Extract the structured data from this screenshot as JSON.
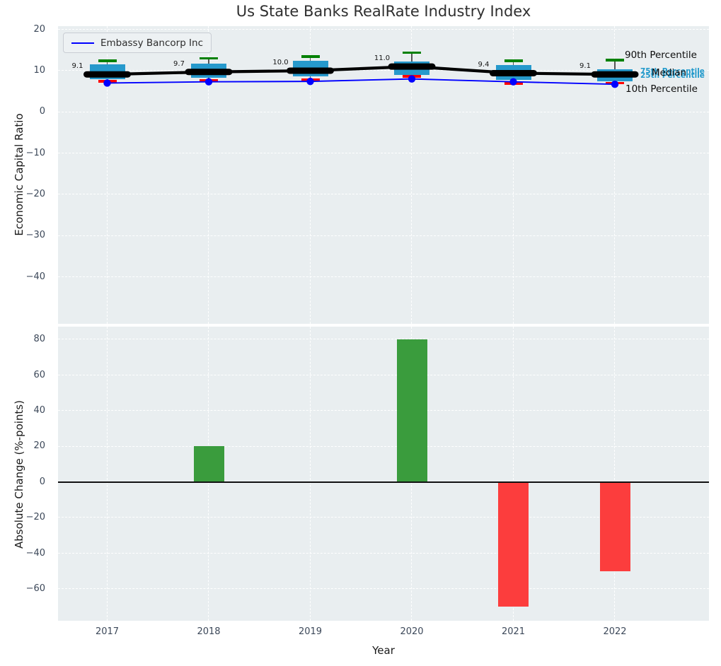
{
  "title": "Us State Banks RealRate Industry Index",
  "legend": {
    "label": "Embassy Bancorp Inc"
  },
  "annotations": {
    "p90": "90th Percentile",
    "median": "Median",
    "p10": "10th Percentile",
    "p75": "75th Percentile",
    "p25": "25th Percentile"
  },
  "colors": {
    "plot_bg": "#e9eef0",
    "grid": "#ffffff",
    "box_fill": "#2699cc",
    "whisker": "#555555",
    "cap_90th": "#008000",
    "cap_10th": "#ff0000",
    "median_line": "#000000",
    "embassy_line": "#0000ff",
    "bar_positive": "#3a9c3d",
    "bar_negative": "#fc3d3d",
    "tick_text": "#3c4859",
    "annotation_cyan": "#2199cb",
    "annotation_black": "#0d0d0d"
  },
  "chart_data": [
    {
      "type": "box",
      "title": "Us State Banks RealRate Industry Index",
      "ylabel": "Economic Capital Ratio",
      "categories": [
        "2017",
        "2018",
        "2019",
        "2020",
        "2021",
        "2022"
      ],
      "yticks": [
        20,
        10,
        0,
        -10,
        -20,
        -30,
        -40
      ],
      "ylim": [
        -51,
        21
      ],
      "grid": true,
      "legend_position": "upper left",
      "boxes": [
        {
          "year": "2017",
          "p10": 7.4,
          "p25": 8.0,
          "median": 9.1,
          "p75": 11.5,
          "p90": 12.4,
          "label": "9.1"
        },
        {
          "year": "2018",
          "p10": 7.7,
          "p25": 8.3,
          "median": 9.7,
          "p75": 11.7,
          "p90": 13.0,
          "label": "9.7"
        },
        {
          "year": "2019",
          "p10": 7.8,
          "p25": 8.6,
          "median": 10.0,
          "p75": 12.4,
          "p90": 13.4,
          "label": "10.0"
        },
        {
          "year": "2020",
          "p10": 8.6,
          "p25": 8.9,
          "median": 11.0,
          "p75": 12.3,
          "p90": 14.4,
          "label": "11.0"
        },
        {
          "year": "2021",
          "p10": 6.9,
          "p25": 7.7,
          "median": 9.4,
          "p75": 11.3,
          "p90": 12.4,
          "label": "9.4"
        },
        {
          "year": "2022",
          "p10": 7.0,
          "p25": 7.4,
          "median": 9.1,
          "p75": 10.4,
          "p90": 12.6,
          "label": "9.1"
        }
      ],
      "series": [
        {
          "name": "Embassy Bancorp Inc",
          "values": [
            7.0,
            7.3,
            7.4,
            8.0,
            7.3,
            6.7
          ]
        },
        {
          "name": "Median",
          "values": [
            9.1,
            9.7,
            10.0,
            11.0,
            9.4,
            9.1
          ]
        }
      ]
    },
    {
      "type": "bar",
      "ylabel": "Absolute Change (%-points)",
      "xlabel": "Year",
      "categories": [
        "2017",
        "2018",
        "2019",
        "2020",
        "2021",
        "2022"
      ],
      "values": [
        0,
        20,
        0,
        80,
        -70,
        -50
      ],
      "yticks": [
        80,
        60,
        40,
        20,
        0,
        -20,
        -40,
        -60
      ],
      "ylim": [
        -78,
        87
      ],
      "grid": true
    }
  ]
}
